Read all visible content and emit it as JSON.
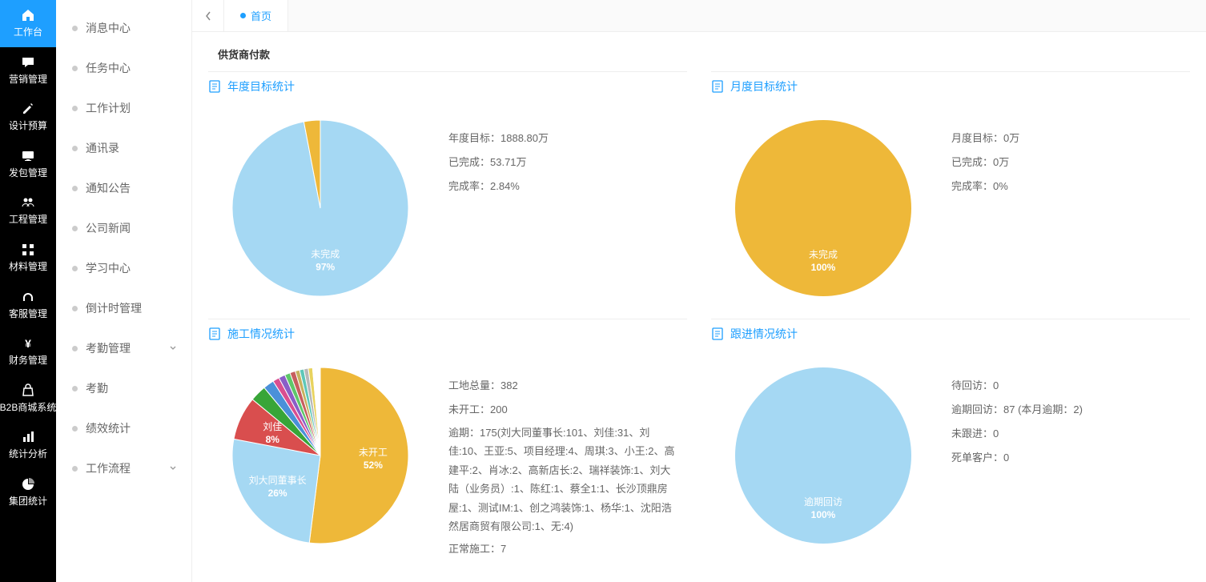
{
  "primaryNav": {
    "items": [
      {
        "label": "工作台",
        "icon": "home",
        "active": true
      },
      {
        "label": "营销管理",
        "icon": "chat"
      },
      {
        "label": "设计预算",
        "icon": "edit"
      },
      {
        "label": "发包管理",
        "icon": "monitor"
      },
      {
        "label": "工程管理",
        "icon": "users"
      },
      {
        "label": "材料管理",
        "icon": "grid"
      },
      {
        "label": "客服管理",
        "icon": "headset"
      },
      {
        "label": "财务管理",
        "icon": "yen"
      },
      {
        "label": "B2B商城系统",
        "icon": "bag"
      },
      {
        "label": "统计分析",
        "icon": "barchart"
      },
      {
        "label": "集团统计",
        "icon": "piechart"
      }
    ]
  },
  "secondaryNav": {
    "items": [
      {
        "label": "消息中心"
      },
      {
        "label": "任务中心"
      },
      {
        "label": "工作计划"
      },
      {
        "label": "通讯录"
      },
      {
        "label": "通知公告"
      },
      {
        "label": "公司新闻"
      },
      {
        "label": "学习中心"
      },
      {
        "label": "倒计时管理"
      },
      {
        "label": "考勤管理",
        "expandable": true
      },
      {
        "label": "考勤"
      },
      {
        "label": "绩效统计"
      },
      {
        "label": "工作流程",
        "expandable": true
      }
    ]
  },
  "tabs": {
    "active": {
      "label": "首页"
    }
  },
  "breadcrumb": "供货商付款",
  "panels": {
    "annual": {
      "title": "年度目标统计",
      "chart": {
        "type": "pie",
        "slices": [
          {
            "label": "未完成",
            "pctLabel": "97%",
            "value": 97,
            "color": "#a5d8f3"
          },
          {
            "label": "",
            "pctLabel": "",
            "value": 3,
            "color": "#eeb839"
          }
        ],
        "centerLabelColor": "#ffffff"
      },
      "stats": [
        {
          "text": "年度目标：1888.80万"
        },
        {
          "text": "已完成：53.71万"
        },
        {
          "text": "完成率：2.84%"
        }
      ]
    },
    "monthly": {
      "title": "月度目标统计",
      "chart": {
        "type": "pie",
        "slices": [
          {
            "label": "未完成",
            "pctLabel": "100%",
            "value": 100,
            "color": "#eeb839"
          }
        ]
      },
      "stats": [
        {
          "text": "月度目标：0万"
        },
        {
          "text": "已完成：0万"
        },
        {
          "text": "完成率：0%"
        }
      ]
    },
    "construction": {
      "title": "施工情况统计",
      "chart": {
        "type": "pie",
        "slices": [
          {
            "label": "未开工",
            "pctLabel": "52%",
            "value": 52,
            "color": "#eeb839",
            "labelColor": "#fff"
          },
          {
            "label": "刘大同董事长",
            "pctLabel": "26%",
            "value": 26,
            "color": "#a5d8f3",
            "labelColor": "#fff"
          },
          {
            "label": "刘佳",
            "pctLabel": "8%",
            "value": 8,
            "color": "#d94e4e",
            "labelColor": "#fff"
          },
          {
            "label": "",
            "pctLabel": "",
            "value": 3,
            "color": "#38a538"
          },
          {
            "label": "",
            "pctLabel": "",
            "value": 2,
            "color": "#4a90d9"
          },
          {
            "label": "",
            "pctLabel": "",
            "value": 1.2,
            "color": "#d94e90"
          },
          {
            "label": "",
            "pctLabel": "",
            "value": 1.2,
            "color": "#8a5ec7"
          },
          {
            "label": "",
            "pctLabel": "",
            "value": 1,
            "color": "#5ec76a"
          },
          {
            "label": "",
            "pctLabel": "",
            "value": 1,
            "color": "#c75e5e"
          },
          {
            "label": "",
            "pctLabel": "",
            "value": 0.8,
            "color": "#c7b15e"
          },
          {
            "label": "",
            "pctLabel": "",
            "value": 0.8,
            "color": "#5ec7b8"
          },
          {
            "label": "",
            "pctLabel": "",
            "value": 0.8,
            "color": "#b8b8b8"
          },
          {
            "label": "",
            "pctLabel": "",
            "value": 0.8,
            "color": "#e8d35e"
          },
          {
            "label": "",
            "pctLabel": "",
            "value": 1.4,
            "color": "#ffffff"
          }
        ]
      },
      "stats": [
        {
          "text": "工地总量：382"
        },
        {
          "text": "未开工：200"
        },
        {
          "text": "逾期：175(刘大同董事长:101、刘佳:31、刘佳:10、王亚:5、项目经理:4、周琪:3、小王:2、高建平:2、肖冰:2、高新店长:2、瑞祥装饰:1、刘大陆（业务员）:1、陈红:1、蔡全1:1、长沙顶鼎房屋:1、测试IM:1、创之鸿装饰:1、杨华:1、沈阳浩然居商贸有限公司:1、无:4)",
          "detail": true
        },
        {
          "text": "正常施工：7"
        }
      ]
    },
    "followup": {
      "title": "跟进情况统计",
      "chart": {
        "type": "pie",
        "slices": [
          {
            "label": "逾期回访",
            "pctLabel": "100%",
            "value": 100,
            "color": "#a5d8f3"
          }
        ]
      },
      "stats": [
        {
          "text": "待回访：0"
        },
        {
          "text": "逾期回访：87 (本月逾期：2)"
        },
        {
          "text": "未跟进：0"
        },
        {
          "text": "死单客户：0"
        }
      ]
    }
  },
  "colors": {
    "accent": "#1e9fff",
    "navBg": "#000000",
    "textMuted": "#666666"
  }
}
